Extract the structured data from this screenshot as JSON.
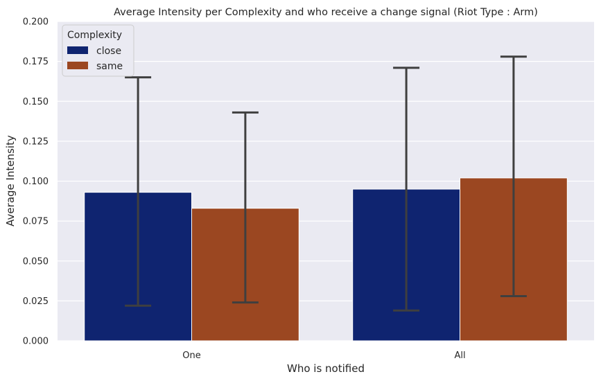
{
  "chart_data": {
    "type": "bar",
    "title": "Average Intensity per Complexity and who receive a change signal (Riot Type : Arm)",
    "xlabel": "Who is notified",
    "ylabel": "Average Intensity",
    "categories": [
      "One",
      "All"
    ],
    "ylim": [
      0,
      0.2
    ],
    "yticks": [
      "0.000",
      "0.025",
      "0.050",
      "0.075",
      "0.100",
      "0.125",
      "0.150",
      "0.175",
      "0.200"
    ],
    "grid": true,
    "legend": {
      "title": "Complexity",
      "placement": "top-left"
    },
    "series": [
      {
        "name": "close",
        "color": "#0f2470",
        "values": [
          0.093,
          0.095
        ],
        "err_low": [
          0.022,
          0.019
        ],
        "err_high": [
          0.165,
          0.171
        ]
      },
      {
        "name": "same",
        "color": "#9b4721",
        "values": [
          0.083,
          0.102
        ],
        "err_low": [
          0.024,
          0.028
        ],
        "err_high": [
          0.143,
          0.178
        ]
      }
    ],
    "colors": {
      "background": "#eaeaf2",
      "grid": "#ffffff",
      "errorbar": "#3f3f3f"
    }
  }
}
